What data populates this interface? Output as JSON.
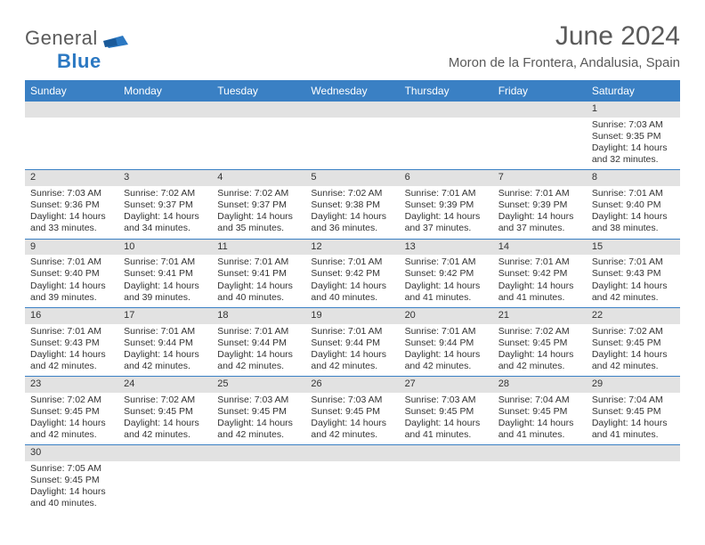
{
  "logo": {
    "text1": "General",
    "text2": "Blue"
  },
  "title": "June 2024",
  "location": "Moron de la Frontera, Andalusia, Spain",
  "header_bg": "#3a80c4",
  "daynum_bg": "#e2e2e2",
  "border_color": "#3a80c4",
  "weekdays": [
    "Sunday",
    "Monday",
    "Tuesday",
    "Wednesday",
    "Thursday",
    "Friday",
    "Saturday"
  ],
  "weeks": [
    [
      null,
      null,
      null,
      null,
      null,
      null,
      {
        "n": "1",
        "sr": "7:03 AM",
        "ss": "9:35 PM",
        "dl": "14 hours and 32 minutes."
      }
    ],
    [
      {
        "n": "2",
        "sr": "7:03 AM",
        "ss": "9:36 PM",
        "dl": "14 hours and 33 minutes."
      },
      {
        "n": "3",
        "sr": "7:02 AM",
        "ss": "9:37 PM",
        "dl": "14 hours and 34 minutes."
      },
      {
        "n": "4",
        "sr": "7:02 AM",
        "ss": "9:37 PM",
        "dl": "14 hours and 35 minutes."
      },
      {
        "n": "5",
        "sr": "7:02 AM",
        "ss": "9:38 PM",
        "dl": "14 hours and 36 minutes."
      },
      {
        "n": "6",
        "sr": "7:01 AM",
        "ss": "9:39 PM",
        "dl": "14 hours and 37 minutes."
      },
      {
        "n": "7",
        "sr": "7:01 AM",
        "ss": "9:39 PM",
        "dl": "14 hours and 37 minutes."
      },
      {
        "n": "8",
        "sr": "7:01 AM",
        "ss": "9:40 PM",
        "dl": "14 hours and 38 minutes."
      }
    ],
    [
      {
        "n": "9",
        "sr": "7:01 AM",
        "ss": "9:40 PM",
        "dl": "14 hours and 39 minutes."
      },
      {
        "n": "10",
        "sr": "7:01 AM",
        "ss": "9:41 PM",
        "dl": "14 hours and 39 minutes."
      },
      {
        "n": "11",
        "sr": "7:01 AM",
        "ss": "9:41 PM",
        "dl": "14 hours and 40 minutes."
      },
      {
        "n": "12",
        "sr": "7:01 AM",
        "ss": "9:42 PM",
        "dl": "14 hours and 40 minutes."
      },
      {
        "n": "13",
        "sr": "7:01 AM",
        "ss": "9:42 PM",
        "dl": "14 hours and 41 minutes."
      },
      {
        "n": "14",
        "sr": "7:01 AM",
        "ss": "9:42 PM",
        "dl": "14 hours and 41 minutes."
      },
      {
        "n": "15",
        "sr": "7:01 AM",
        "ss": "9:43 PM",
        "dl": "14 hours and 42 minutes."
      }
    ],
    [
      {
        "n": "16",
        "sr": "7:01 AM",
        "ss": "9:43 PM",
        "dl": "14 hours and 42 minutes."
      },
      {
        "n": "17",
        "sr": "7:01 AM",
        "ss": "9:44 PM",
        "dl": "14 hours and 42 minutes."
      },
      {
        "n": "18",
        "sr": "7:01 AM",
        "ss": "9:44 PM",
        "dl": "14 hours and 42 minutes."
      },
      {
        "n": "19",
        "sr": "7:01 AM",
        "ss": "9:44 PM",
        "dl": "14 hours and 42 minutes."
      },
      {
        "n": "20",
        "sr": "7:01 AM",
        "ss": "9:44 PM",
        "dl": "14 hours and 42 minutes."
      },
      {
        "n": "21",
        "sr": "7:02 AM",
        "ss": "9:45 PM",
        "dl": "14 hours and 42 minutes."
      },
      {
        "n": "22",
        "sr": "7:02 AM",
        "ss": "9:45 PM",
        "dl": "14 hours and 42 minutes."
      }
    ],
    [
      {
        "n": "23",
        "sr": "7:02 AM",
        "ss": "9:45 PM",
        "dl": "14 hours and 42 minutes."
      },
      {
        "n": "24",
        "sr": "7:02 AM",
        "ss": "9:45 PM",
        "dl": "14 hours and 42 minutes."
      },
      {
        "n": "25",
        "sr": "7:03 AM",
        "ss": "9:45 PM",
        "dl": "14 hours and 42 minutes."
      },
      {
        "n": "26",
        "sr": "7:03 AM",
        "ss": "9:45 PM",
        "dl": "14 hours and 42 minutes."
      },
      {
        "n": "27",
        "sr": "7:03 AM",
        "ss": "9:45 PM",
        "dl": "14 hours and 41 minutes."
      },
      {
        "n": "28",
        "sr": "7:04 AM",
        "ss": "9:45 PM",
        "dl": "14 hours and 41 minutes."
      },
      {
        "n": "29",
        "sr": "7:04 AM",
        "ss": "9:45 PM",
        "dl": "14 hours and 41 minutes."
      }
    ],
    [
      {
        "n": "30",
        "sr": "7:05 AM",
        "ss": "9:45 PM",
        "dl": "14 hours and 40 minutes."
      },
      null,
      null,
      null,
      null,
      null,
      null
    ]
  ],
  "labels": {
    "sunrise": "Sunrise:",
    "sunset": "Sunset:",
    "daylight": "Daylight:"
  }
}
